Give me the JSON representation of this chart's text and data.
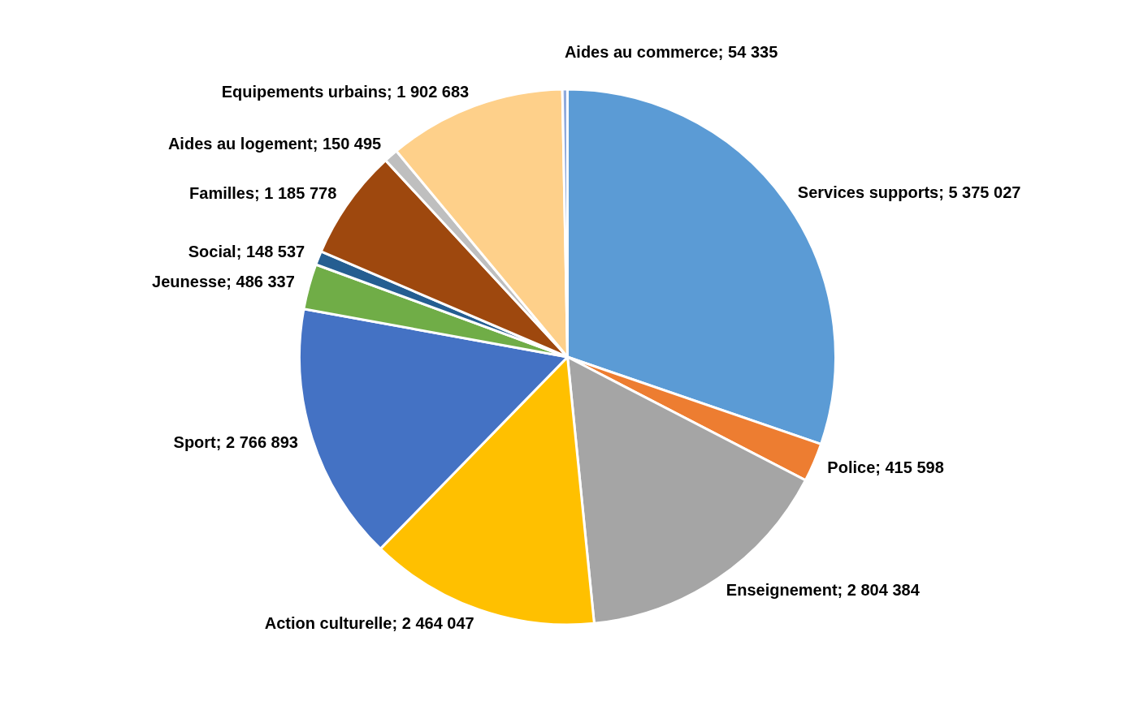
{
  "chart_data": {
    "type": "pie",
    "categories": [
      "Services supports",
      "Police",
      "Enseignement",
      "Action culturelle",
      "Sport",
      "Jeunesse",
      "Social",
      "Familles",
      "Aides au logement",
      "Equipements urbains",
      "Aides au commerce"
    ],
    "values": [
      5375027,
      415598,
      2804384,
      2464047,
      2766893,
      486337,
      148537,
      1185778,
      150495,
      1902683,
      54335
    ],
    "value_labels": [
      "5 375 027",
      "415 598",
      "2 804 384",
      "2 464 047",
      "2 766 893",
      "486 337",
      "148 537",
      "1 185 778",
      "150 495",
      "1 902 683",
      "54 335"
    ],
    "colors": [
      "#5b9bd5",
      "#ed7d31",
      "#a5a5a5",
      "#ffc000",
      "#4472c4",
      "#70ad47",
      "#255e91",
      "#9e480e",
      "#bfbfbf",
      "#fed08a",
      "#8faadc"
    ]
  }
}
